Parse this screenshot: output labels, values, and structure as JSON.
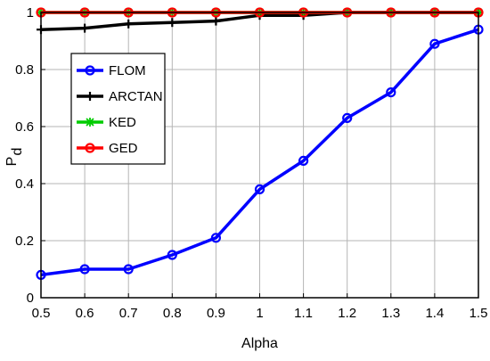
{
  "chart_data": {
    "type": "line",
    "x": [
      0.5,
      0.6,
      0.7,
      0.8,
      0.9,
      1.0,
      1.1,
      1.2,
      1.3,
      1.4,
      1.5
    ],
    "x_tick_labels": [
      "0.5",
      "0.6",
      "0.7",
      "0.8",
      "0.9",
      "1",
      "1.1",
      "1.2",
      "1.3",
      "1.4",
      "1.5"
    ],
    "y_tick_labels": [
      "0",
      "0.2",
      "0.4",
      "0.6",
      "0.8",
      "1"
    ],
    "xlim": [
      0.5,
      1.5
    ],
    "ylim": [
      0,
      1
    ],
    "xlabel": "Alpha",
    "ylabel_main": "P",
    "ylabel_sub": "d",
    "grid": true,
    "legend_position": "upper-left",
    "series": [
      {
        "name": "FLOM",
        "color": "#0000ff",
        "marker": "circle",
        "values": [
          0.08,
          0.1,
          0.1,
          0.15,
          0.21,
          0.38,
          0.48,
          0.63,
          0.72,
          0.89,
          0.94
        ]
      },
      {
        "name": "ARCTAN",
        "color": "#000000",
        "marker": "plus",
        "values": [
          0.94,
          0.945,
          0.96,
          0.965,
          0.97,
          0.99,
          0.99,
          1.0,
          1.0,
          1.0,
          1.0
        ]
      },
      {
        "name": "KED",
        "color": "#00cc00",
        "marker": "star",
        "values": [
          1,
          1,
          1,
          1,
          1,
          1,
          1,
          1,
          1,
          1,
          1
        ]
      },
      {
        "name": "GED",
        "color": "#ff0000",
        "marker": "circle",
        "values": [
          1,
          1,
          1,
          1,
          1,
          1,
          1,
          1,
          1,
          1,
          1
        ]
      }
    ]
  }
}
